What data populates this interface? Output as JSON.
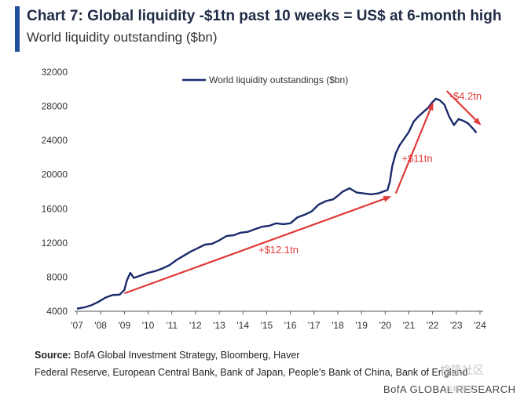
{
  "header": {
    "title": "Chart 7: Global liquidity -$1tn past 10 weeks = US$ at 6-month high",
    "subtitle": "World liquidity outstanding ($bn)",
    "accent_color": "#1f4e9c"
  },
  "footer": {
    "source_label": "Source:",
    "source_text": "BofA Global Investment Strategy, Bloomberg, Haver",
    "source_line2": "Federal Reserve, European Central Bank, Bank of Japan, People's Bank of China, Bank of England",
    "brand": "BofA GLOBAL RESEARCH",
    "watermark": "格隆社区",
    "watermark2": "@格隆汇"
  },
  "chart_data": {
    "type": "line",
    "xlabel": "",
    "ylabel": "",
    "xlim": [
      2007,
      2024.2
    ],
    "ylim": [
      4000,
      32000
    ],
    "yticks": [
      "4000",
      "8000",
      "12000",
      "16000",
      "20000",
      "24000",
      "28000",
      "32000"
    ],
    "xtick_values": [
      2007,
      2008,
      2009,
      2010,
      2011,
      2012,
      2013,
      2014,
      2015,
      2016,
      2017,
      2018,
      2019,
      2020,
      2021,
      2022,
      2023,
      2024
    ],
    "xtick_labels": [
      "'07",
      "'08",
      "'09",
      "'10",
      "'11",
      "'12",
      "'13",
      "'14",
      "'15",
      "'16",
      "'17",
      "'18",
      "'19",
      "'20",
      "'21",
      "'22",
      "'23",
      "'24"
    ],
    "grid": false,
    "legend": "top-left",
    "series": [
      {
        "name": "World liquidity outstandings ($bn)",
        "color": "#1a2a6c",
        "x": [
          2007.0,
          2007.3,
          2007.6,
          2007.9,
          2008.2,
          2008.5,
          2008.8,
          2009.0,
          2009.1,
          2009.25,
          2009.4,
          2009.7,
          2010.0,
          2010.3,
          2010.6,
          2010.9,
          2011.2,
          2011.5,
          2011.8,
          2012.1,
          2012.4,
          2012.7,
          2013.0,
          2013.3,
          2013.6,
          2013.9,
          2014.2,
          2014.5,
          2014.8,
          2015.1,
          2015.4,
          2015.7,
          2016.0,
          2016.3,
          2016.6,
          2016.9,
          2017.2,
          2017.5,
          2017.8,
          2018.0,
          2018.2,
          2018.5,
          2018.8,
          2019.1,
          2019.4,
          2019.7,
          2019.9,
          2020.1,
          2020.2,
          2020.3,
          2020.45,
          2020.6,
          2020.8,
          2021.0,
          2021.2,
          2021.4,
          2021.6,
          2021.8,
          2022.0,
          2022.15,
          2022.3,
          2022.5,
          2022.7,
          2022.9,
          2023.1,
          2023.3,
          2023.5,
          2023.7,
          2023.85
        ],
        "values": [
          4300,
          4450,
          4700,
          5100,
          5600,
          5900,
          5950,
          6500,
          7600,
          8500,
          7900,
          8200,
          8500,
          8700,
          9000,
          9400,
          10000,
          10500,
          11000,
          11400,
          11800,
          11900,
          12300,
          12800,
          12900,
          13200,
          13300,
          13600,
          13900,
          14000,
          14300,
          14200,
          14300,
          15000,
          15300,
          15700,
          16500,
          16900,
          17100,
          17500,
          18000,
          18400,
          17900,
          17800,
          17700,
          17800,
          18000,
          18200,
          19200,
          21000,
          22500,
          23400,
          24200,
          25000,
          26200,
          26800,
          27300,
          27800,
          28500,
          28900,
          28700,
          28200,
          26800,
          25800,
          26500,
          26300,
          26000,
          25400,
          24900
        ]
      }
    ],
    "annotations": [
      {
        "text": "+$12.1tn",
        "x": 2015.5,
        "y": 10800,
        "color": "#e03a3a"
      },
      {
        "text": "+$11tn",
        "x": 2021.35,
        "y": 21500,
        "color": "#e03a3a"
      },
      {
        "text": "-$4.2tn",
        "x": 2023.4,
        "y": 28800,
        "color": "#e03a3a"
      }
    ],
    "arrows": [
      {
        "from": [
          2009.0,
          6100
        ],
        "to": [
          2020.2,
          17400
        ],
        "color": "#e03a3a"
      },
      {
        "from": [
          2020.45,
          17800
        ],
        "to": [
          2022.0,
          28300
        ],
        "color": "#e03a3a"
      },
      {
        "from": [
          2022.6,
          29800
        ],
        "to": [
          2024.0,
          25900
        ],
        "color": "#e03a3a"
      }
    ]
  }
}
